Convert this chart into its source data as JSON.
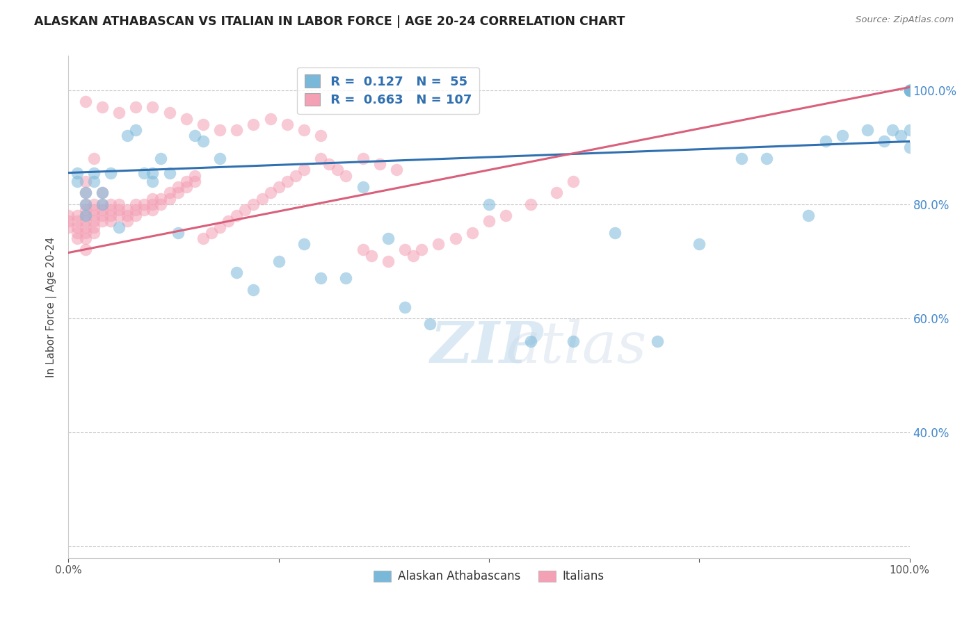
{
  "title": "ALASKAN ATHABASCAN VS ITALIAN IN LABOR FORCE | AGE 20-24 CORRELATION CHART",
  "source": "Source: ZipAtlas.com",
  "ylabel": "In Labor Force | Age 20-24",
  "xlim": [
    0.0,
    1.0
  ],
  "ylim": [
    0.18,
    1.06
  ],
  "blue_R": 0.127,
  "blue_N": 55,
  "pink_R": 0.663,
  "pink_N": 107,
  "blue_color": "#7ab8d9",
  "pink_color": "#f4a0b5",
  "blue_line_color": "#3070b0",
  "pink_line_color": "#d95f7a",
  "legend_label_blue": "Alaskan Athabascans",
  "legend_label_pink": "Italians",
  "background_color": "#ffffff",
  "grid_color": "#bbbbbb",
  "blue_line_x0": 0.0,
  "blue_line_y0": 0.855,
  "blue_line_x1": 1.0,
  "blue_line_y1": 0.91,
  "pink_line_x0": 0.0,
  "pink_line_y0": 0.715,
  "pink_line_x1": 1.0,
  "pink_line_y1": 1.005,
  "blue_x": [
    0.01,
    0.01,
    0.02,
    0.02,
    0.02,
    0.03,
    0.03,
    0.04,
    0.04,
    0.05,
    0.06,
    0.07,
    0.08,
    0.09,
    0.1,
    0.1,
    0.11,
    0.12,
    0.13,
    0.15,
    0.16,
    0.18,
    0.2,
    0.22,
    0.25,
    0.28,
    0.3,
    0.33,
    0.35,
    0.38,
    0.4,
    0.43,
    0.5,
    0.55,
    0.6,
    0.65,
    0.7,
    0.75,
    0.8,
    0.83,
    0.88,
    0.9,
    0.92,
    0.95,
    0.97,
    0.98,
    0.99,
    1.0,
    1.0,
    1.0,
    1.0,
    1.0,
    1.0,
    1.0,
    1.0
  ],
  "blue_y": [
    0.855,
    0.84,
    0.82,
    0.8,
    0.78,
    0.855,
    0.84,
    0.8,
    0.82,
    0.855,
    0.76,
    0.92,
    0.93,
    0.855,
    0.855,
    0.84,
    0.88,
    0.855,
    0.75,
    0.92,
    0.91,
    0.88,
    0.68,
    0.65,
    0.7,
    0.73,
    0.67,
    0.67,
    0.83,
    0.74,
    0.62,
    0.59,
    0.8,
    0.56,
    0.56,
    0.75,
    0.56,
    0.73,
    0.88,
    0.88,
    0.78,
    0.91,
    0.92,
    0.93,
    0.91,
    0.93,
    0.92,
    1.0,
    1.0,
    1.0,
    1.0,
    1.0,
    1.0,
    0.93,
    0.9
  ],
  "pink_x": [
    0.0,
    0.0,
    0.0,
    0.01,
    0.01,
    0.01,
    0.01,
    0.01,
    0.02,
    0.02,
    0.02,
    0.02,
    0.02,
    0.02,
    0.02,
    0.02,
    0.02,
    0.03,
    0.03,
    0.03,
    0.03,
    0.03,
    0.03,
    0.04,
    0.04,
    0.04,
    0.04,
    0.04,
    0.05,
    0.05,
    0.05,
    0.05,
    0.06,
    0.06,
    0.06,
    0.07,
    0.07,
    0.07,
    0.08,
    0.08,
    0.08,
    0.09,
    0.09,
    0.1,
    0.1,
    0.1,
    0.11,
    0.11,
    0.12,
    0.12,
    0.13,
    0.13,
    0.14,
    0.14,
    0.15,
    0.15,
    0.16,
    0.17,
    0.18,
    0.19,
    0.2,
    0.21,
    0.22,
    0.23,
    0.24,
    0.25,
    0.26,
    0.27,
    0.28,
    0.3,
    0.31,
    0.32,
    0.33,
    0.35,
    0.36,
    0.38,
    0.4,
    0.41,
    0.42,
    0.44,
    0.46,
    0.48,
    0.5,
    0.52,
    0.55,
    0.58,
    0.6,
    0.35,
    0.37,
    0.39,
    0.2,
    0.22,
    0.24,
    0.26,
    0.28,
    0.3,
    0.1,
    0.12,
    0.14,
    0.16,
    0.18,
    0.06,
    0.08,
    0.04,
    0.02,
    0.02,
    0.03
  ],
  "pink_y": [
    0.78,
    0.77,
    0.76,
    0.78,
    0.77,
    0.76,
    0.75,
    0.74,
    0.84,
    0.82,
    0.8,
    0.79,
    0.78,
    0.77,
    0.76,
    0.75,
    0.74,
    0.8,
    0.79,
    0.78,
    0.77,
    0.76,
    0.75,
    0.82,
    0.8,
    0.79,
    0.78,
    0.77,
    0.8,
    0.79,
    0.78,
    0.77,
    0.8,
    0.79,
    0.78,
    0.79,
    0.78,
    0.77,
    0.8,
    0.79,
    0.78,
    0.8,
    0.79,
    0.81,
    0.8,
    0.79,
    0.81,
    0.8,
    0.82,
    0.81,
    0.83,
    0.82,
    0.84,
    0.83,
    0.85,
    0.84,
    0.74,
    0.75,
    0.76,
    0.77,
    0.78,
    0.79,
    0.8,
    0.81,
    0.82,
    0.83,
    0.84,
    0.85,
    0.86,
    0.88,
    0.87,
    0.86,
    0.85,
    0.72,
    0.71,
    0.7,
    0.72,
    0.71,
    0.72,
    0.73,
    0.74,
    0.75,
    0.77,
    0.78,
    0.8,
    0.82,
    0.84,
    0.88,
    0.87,
    0.86,
    0.93,
    0.94,
    0.95,
    0.94,
    0.93,
    0.92,
    0.97,
    0.96,
    0.95,
    0.94,
    0.93,
    0.96,
    0.97,
    0.97,
    0.98,
    0.72,
    0.88
  ]
}
